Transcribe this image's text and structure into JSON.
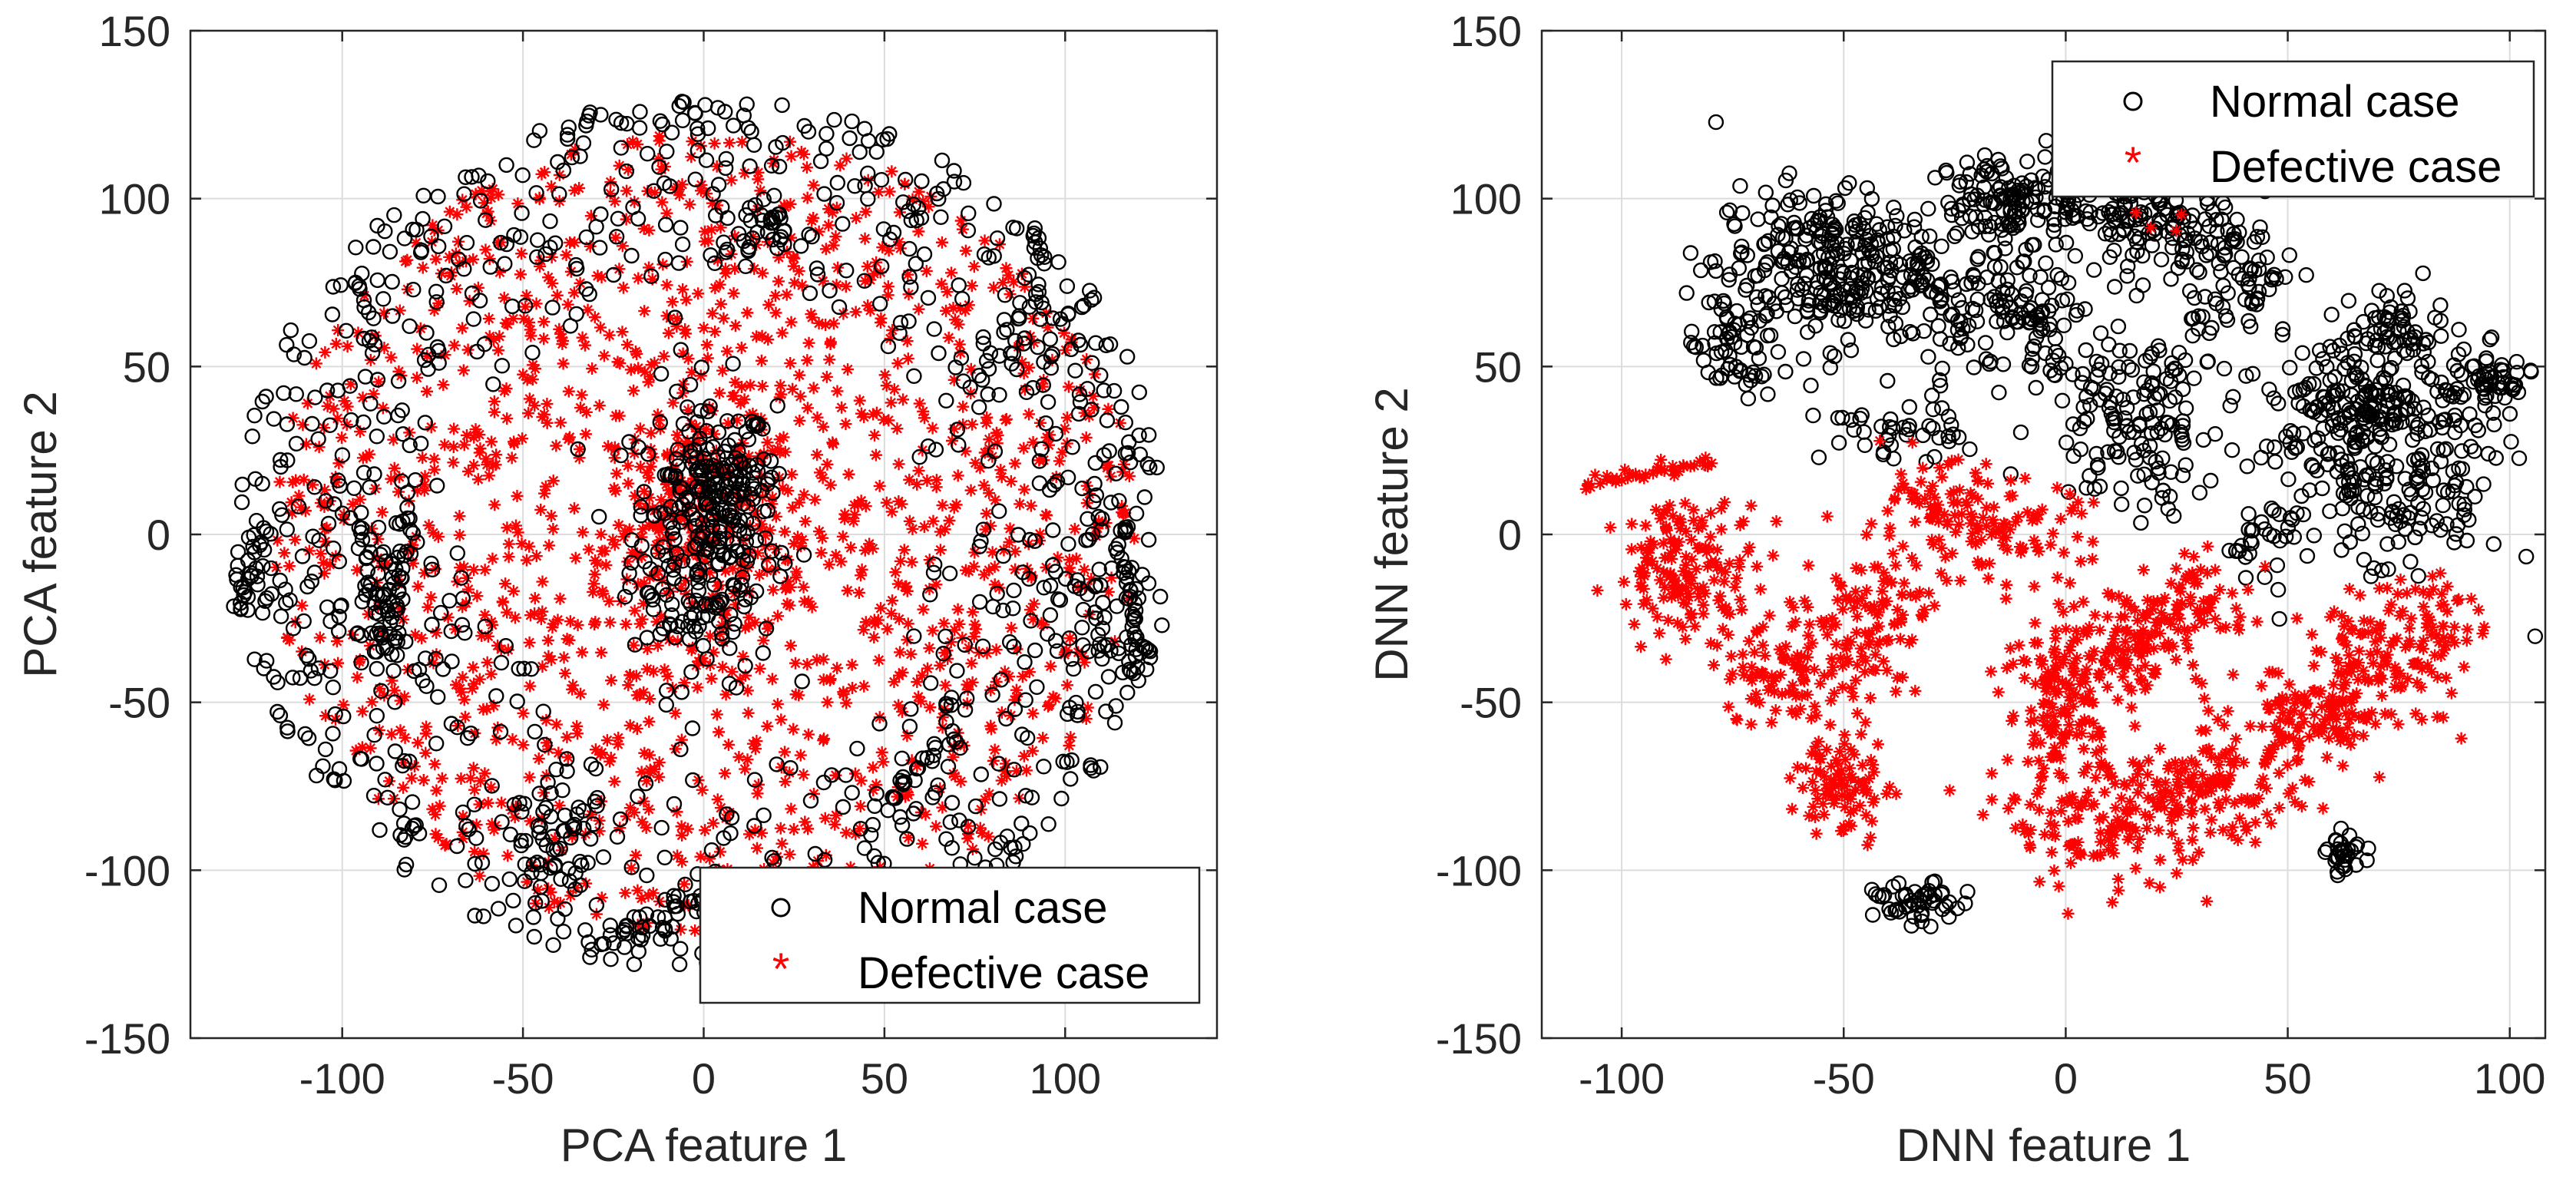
{
  "colors": {
    "normal": "#000000",
    "defective": "#ff0000",
    "axis": "#262626",
    "grid": "#dcdcdc"
  },
  "legend_labels": {
    "normal": "Normal case",
    "defective": "Defective case"
  },
  "chart_data": [
    {
      "type": "scatter",
      "xlabel": "PCA feature 1",
      "ylabel": "PCA feature 2",
      "xlim": [
        -142,
        142
      ],
      "ylim": [
        -150,
        150
      ],
      "xticks": [
        -100,
        -50,
        0,
        50,
        100
      ],
      "yticks": [
        -150,
        -100,
        -50,
        0,
        50,
        100,
        150
      ],
      "grid": true,
      "legend_position": "bottom-right",
      "series": [
        {
          "name": "Normal case",
          "marker": "circle",
          "distribution": "scattered arcs over a disk of radius ~130 with a dense core near (0, 0)",
          "clusters": [
            {
              "cx": 0,
              "cy": 0,
              "sx": 10,
              "sy": 22,
              "n": 260
            },
            {
              "cx": 8,
              "cy": 15,
              "sx": 6,
              "sy": 8,
              "n": 60
            },
            {
              "cx": 15,
              "cy": 90,
              "sx": 6,
              "sy": 5,
              "n": 30
            },
            {
              "cx": -90,
              "cy": -20,
              "sx": 5,
              "sy": 18,
              "n": 50
            },
            {
              "cx": -40,
              "cy": -95,
              "sx": 7,
              "sy": 10,
              "n": 40
            },
            {
              "cx": 0,
              "cy": -110,
              "sx": 8,
              "sy": 4,
              "n": 25
            },
            {
              "cx": 110,
              "cy": -5,
              "sx": 6,
              "sy": 20,
              "n": 30
            }
          ],
          "disk": {
            "r_min": 60,
            "r_max": 130,
            "n": 900
          },
          "arcs": [
            {
              "cx": -85,
              "cy": -15,
              "len": 40,
              "angle": 80,
              "n": 30
            },
            {
              "cx": 118,
              "cy": -20,
              "len": 45,
              "angle": 95,
              "n": 35
            },
            {
              "cx": -125,
              "cy": -10,
              "len": 30,
              "angle": 80,
              "n": 20
            },
            {
              "cx": 60,
              "cy": -70,
              "len": 30,
              "angle": 45,
              "n": 22
            },
            {
              "cx": -20,
              "cy": -120,
              "len": 25,
              "angle": 10,
              "n": 18
            },
            {
              "cx": 85,
              "cy": 60,
              "len": 30,
              "angle": 60,
              "n": 20
            }
          ]
        },
        {
          "name": "Defective case",
          "marker": "asterisk",
          "distribution": "dense disk of radius ~100 centred near (0, 0), sparse towards the rim",
          "clusters": [
            {
              "cx": 0,
              "cy": 5,
              "sx": 14,
              "sy": 18,
              "n": 180
            }
          ],
          "disk": {
            "r_min": 0,
            "r_max": 120,
            "n": 1500
          }
        }
      ]
    },
    {
      "type": "scatter",
      "xlabel": "DNN feature 1",
      "ylabel": "DNN feature 2",
      "xlim": [
        -118,
        108
      ],
      "ylim": [
        -150,
        150
      ],
      "xticks": [
        -100,
        -50,
        0,
        50,
        100
      ],
      "yticks": [
        -150,
        -100,
        -50,
        0,
        50,
        100,
        150
      ],
      "grid": true,
      "legend_position": "top-right",
      "series": [
        {
          "name": "Normal case",
          "marker": "circle",
          "clusters": [
            {
              "cx": -55,
              "cy": 80,
              "sx": 12,
              "sy": 12,
              "n": 260
            },
            {
              "cx": -75,
              "cy": 55,
              "sx": 5,
              "sy": 8,
              "n": 60
            },
            {
              "cx": -25,
              "cy": 75,
              "sx": 10,
              "sy": 15,
              "n": 120
            },
            {
              "cx": -15,
              "cy": 100,
              "sx": 6,
              "sy": 6,
              "n": 60
            },
            {
              "cx": 0,
              "cy": 100,
              "sx": 10,
              "sy": 7,
              "n": 120
            },
            {
              "cx": 25,
              "cy": 90,
              "sx": 8,
              "sy": 8,
              "n": 100
            },
            {
              "cx": 40,
              "cy": 75,
              "sx": 6,
              "sy": 10,
              "n": 60
            },
            {
              "cx": -5,
              "cy": 60,
              "sx": 6,
              "sy": 10,
              "n": 60
            },
            {
              "cx": 15,
              "cy": 35,
              "sx": 10,
              "sy": 15,
              "n": 150
            },
            {
              "cx": 65,
              "cy": 40,
              "sx": 10,
              "sy": 10,
              "n": 170
            },
            {
              "cx": 75,
              "cy": 15,
              "sx": 12,
              "sy": 15,
              "n": 180
            },
            {
              "cx": 95,
              "cy": 45,
              "sx": 5,
              "sy": 5,
              "n": 60
            },
            {
              "cx": 75,
              "cy": 60,
              "sx": 5,
              "sy": 8,
              "n": 50
            },
            {
              "cx": -40,
              "cy": 30,
              "sx": 8,
              "sy": 4,
              "n": 40
            },
            {
              "cx": 45,
              "cy": -2,
              "sx": 5,
              "sy": 6,
              "n": 30
            },
            {
              "cx": 63,
              "cy": -95,
              "sx": 2,
              "sy": 3,
              "n": 30
            },
            {
              "cx": -33,
              "cy": -110,
              "sx": 5,
              "sy": 3,
              "n": 50
            }
          ]
        },
        {
          "name": "Defective case",
          "marker": "asterisk",
          "clusters": [
            {
              "cx": -85,
              "cy": -10,
              "sx": 8,
              "sy": 10,
              "n": 160
            },
            {
              "cx": -62,
              "cy": -40,
              "sx": 8,
              "sy": 10,
              "n": 100
            },
            {
              "cx": -50,
              "cy": -75,
              "sx": 5,
              "sy": 8,
              "n": 90
            },
            {
              "cx": -45,
              "cy": -25,
              "sx": 7,
              "sy": 10,
              "n": 100
            },
            {
              "cx": -30,
              "cy": 5,
              "sx": 8,
              "sy": 8,
              "n": 90
            },
            {
              "cx": -10,
              "cy": 0,
              "sx": 8,
              "sy": 8,
              "n": 60
            },
            {
              "cx": 0,
              "cy": -50,
              "sx": 7,
              "sy": 12,
              "n": 140
            },
            {
              "cx": 15,
              "cy": -30,
              "sx": 8,
              "sy": 8,
              "n": 110
            },
            {
              "cx": 30,
              "cy": -20,
              "sx": 6,
              "sy": 6,
              "n": 60
            },
            {
              "cx": 10,
              "cy": -85,
              "sx": 12,
              "sy": 10,
              "n": 150
            },
            {
              "cx": 35,
              "cy": -75,
              "sx": 10,
              "sy": 8,
              "n": 120
            },
            {
              "cx": 55,
              "cy": -55,
              "sx": 8,
              "sy": 8,
              "n": 100
            },
            {
              "cx": 70,
              "cy": -40,
              "sx": 8,
              "sy": 10,
              "n": 110
            },
            {
              "cx": 83,
              "cy": -25,
              "sx": 5,
              "sy": 8,
              "n": 50
            },
            {
              "cx": 25,
              "cy": 95,
              "sx": 3,
              "sy": 3,
              "n": 4
            }
          ],
          "tail": {
            "x_start": -108,
            "y_start": 15,
            "x_end": -80,
            "y_end": 22,
            "n": 40
          }
        }
      ]
    }
  ]
}
